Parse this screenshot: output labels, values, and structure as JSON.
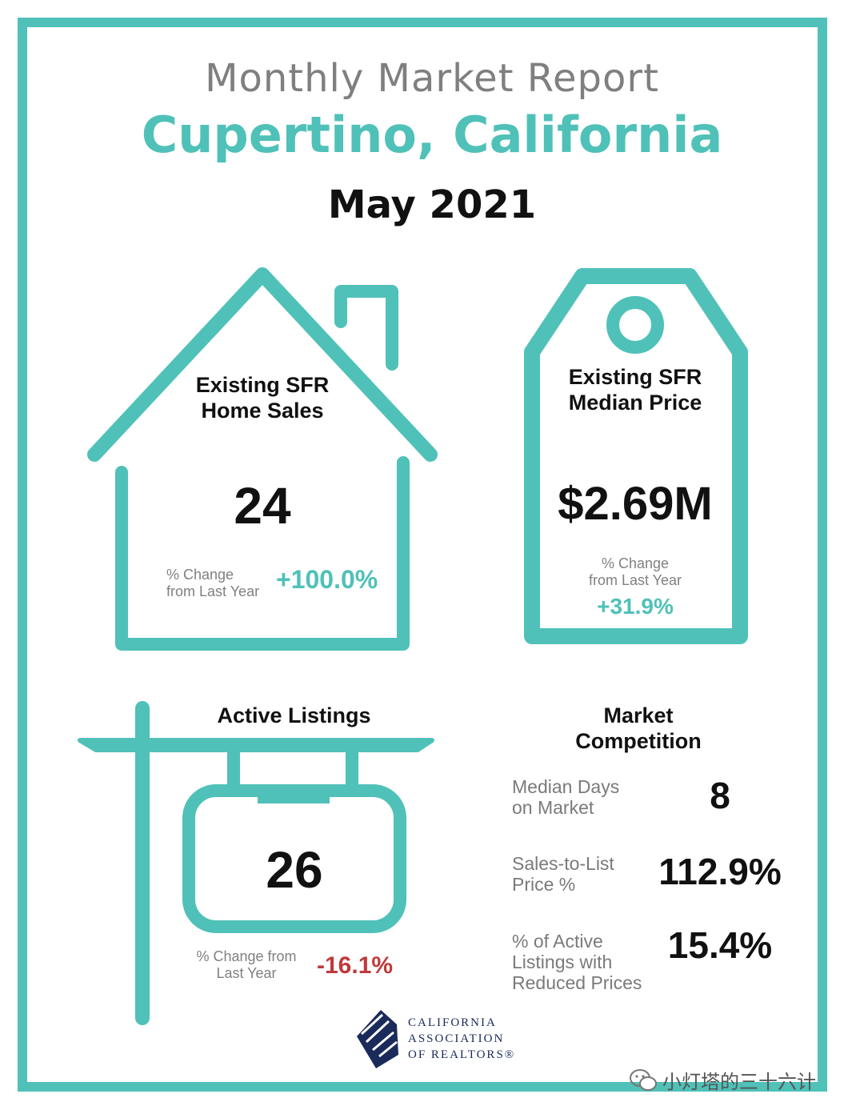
{
  "header": {
    "title": "Monthly Market Report",
    "location": "Cupertino, California",
    "period": "May 2021"
  },
  "home_sales": {
    "label_line1": "Existing SFR",
    "label_line2": "Home Sales",
    "value": "24",
    "change_label_line1": "% Change",
    "change_label_line2": "from Last Year",
    "change_value": "+100.0%"
  },
  "median_price": {
    "label_line1": "Existing SFR",
    "label_line2": "Median Price",
    "value": "$2.69M",
    "change_label_line1": "% Change",
    "change_label_line2": "from Last Year",
    "change_value": "+31.9%"
  },
  "active_listings": {
    "label": "Active Listings",
    "value": "26",
    "change_label_line1": "% Change from",
    "change_label_line2": "Last Year",
    "change_value": "-16.1%"
  },
  "market_competition": {
    "title_line1": "Market",
    "title_line2": "Competition",
    "rows": [
      {
        "label_lines": [
          "Median Days",
          "on Market"
        ],
        "value": "8"
      },
      {
        "label_lines": [
          "Sales-to-List",
          "Price %"
        ],
        "value": "112.9%"
      },
      {
        "label_lines": [
          "% of Active",
          "Listings with",
          "Reduced Prices"
        ],
        "value": "15.4%"
      }
    ]
  },
  "logo": {
    "line1": "CALIFORNIA",
    "line2": "ASSOCIATION",
    "line3": "OF REALTORS®"
  },
  "watermark": {
    "text": "小灯塔的三十六计",
    "icon": "wechat-icon"
  },
  "colors": {
    "accent": "#4fc1b8",
    "positive": "#4fc1b8",
    "negative": "#c0393b",
    "text": "#111111",
    "muted": "#808080",
    "logo": "#1a2a5a"
  }
}
